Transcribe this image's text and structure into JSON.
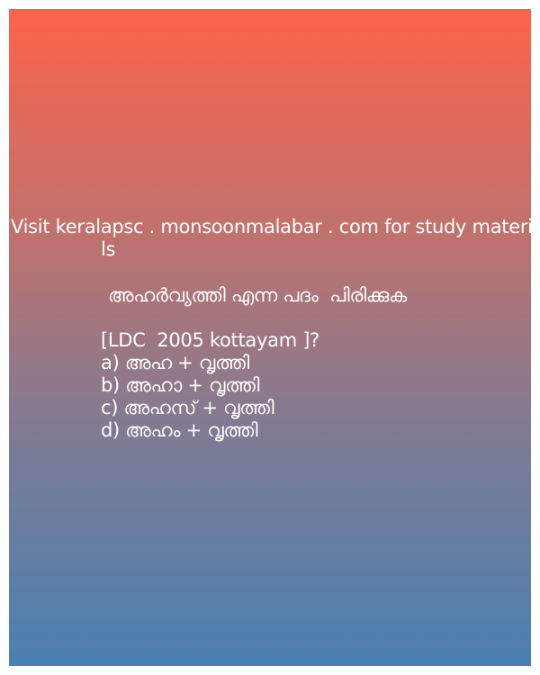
{
  "visit_line_1": "Visit keralapsc . monsoonmalabar . com for study materia",
  "visit_line_2": "ls",
  "question": "അഹർവ്യത്തി എന്ന പദം  പിരിക്കുക",
  "reference": "[LDC  2005 kottayam ]?",
  "options": [
    "a) അഹ + വൃത്തി",
    "b) അഹാ + വൃത്തി",
    "c) അഹസ് + വൃത്തി",
    "d) അഹം + വൃത്തി"
  ],
  "colors": {
    "gradient_top": "#fd634a",
    "gradient_bottom": "#4a80b2",
    "text": "#ffffff"
  }
}
